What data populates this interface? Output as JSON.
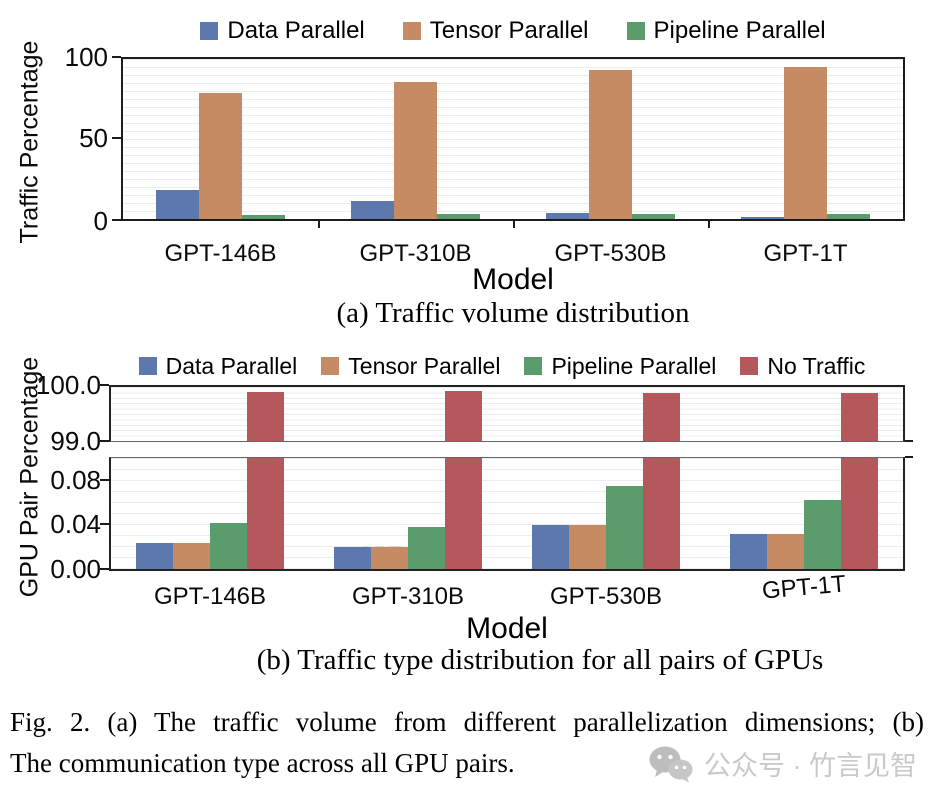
{
  "figure": {
    "caption": {
      "line1": "Fig. 2.  (a) The traffic volume from different parallelization dimensions; (b)",
      "line2": "The communication type across all GPU pairs."
    },
    "watermark": {
      "label": "公众号 · 竹言见智",
      "icon": "wechat-bubbles-icon",
      "color": "#c9c9c9"
    }
  },
  "colors": {
    "data_parallel": "#5C78AD",
    "tensor_parallel": "#C78B64",
    "pipeline_parallel": "#5B9C6C",
    "no_traffic": "#B4585C",
    "grid": "#ececec",
    "axis": "#1c1c1c",
    "ghost_label": "#c3c3c3"
  },
  "chart_data": [
    {
      "id": "a",
      "type": "bar",
      "title": "(a) Traffic volume distribution",
      "xlabel": "Model",
      "ylabel": "Traffic Percentage",
      "categories": [
        "GPT-146B",
        "GPT-310B",
        "GPT-530B",
        "GPT-1T"
      ],
      "series": [
        {
          "name": "Data Parallel",
          "color": "#5C78AD",
          "values": [
            18,
            11,
            4,
            1.5
          ]
        },
        {
          "name": "Tensor Parallel",
          "color": "#C78B64",
          "values": [
            78.5,
            85.5,
            93,
            95
          ]
        },
        {
          "name": "Pipeline Parallel",
          "color": "#5B9C6C",
          "values": [
            2.5,
            3,
            3,
            3
          ]
        }
      ],
      "ylim": [
        0,
        100
      ],
      "ytick_labels": [
        "100",
        "50",
        "0"
      ],
      "grid": true,
      "legend_position": "top"
    },
    {
      "id": "b",
      "type": "bar",
      "axis_break": true,
      "title": "(b) Traffic type distribution for all pairs of GPUs",
      "xlabel": "Model",
      "ylabel": "GPU Pair Percentage",
      "categories": [
        "GPT-146B",
        "GPT-310B",
        "GPT-530B",
        "GPT-1T"
      ],
      "series": [
        {
          "name": "Data Parallel",
          "color": "#5C78AD",
          "values": [
            0.024,
            0.02,
            0.04,
            0.032
          ]
        },
        {
          "name": "Tensor Parallel",
          "color": "#C78B64",
          "values": [
            0.024,
            0.02,
            0.04,
            0.032
          ]
        },
        {
          "name": "Pipeline Parallel",
          "color": "#5B9C6C",
          "values": [
            0.042,
            0.038,
            0.076,
            0.063
          ]
        },
        {
          "name": "No Traffic",
          "color": "#B4585C",
          "values": [
            99.91,
            99.92,
            99.88,
            99.89
          ]
        }
      ],
      "upper_ylim": [
        99.0,
        100.0
      ],
      "upper_ytick_labels": [
        "100.0",
        "99.0"
      ],
      "lower_ylim": [
        0,
        0.1016
      ],
      "lower_ytick_labels": [
        "0.08",
        "0.04",
        "0.00"
      ],
      "grid": true,
      "legend_position": "top",
      "faint_duplicate_category_labels": true
    }
  ]
}
